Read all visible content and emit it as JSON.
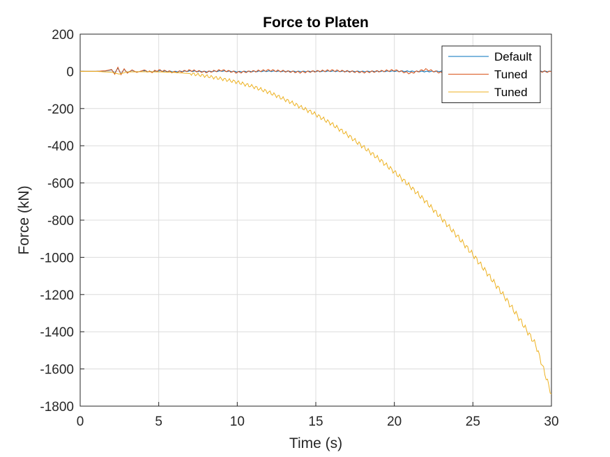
{
  "chart_data": {
    "type": "line",
    "title": "Force to Platen",
    "xlabel": "Time (s)",
    "ylabel": "Force (kN)",
    "xlim": [
      0,
      30
    ],
    "ylim": [
      -1800,
      200
    ],
    "xticks": [
      0,
      5,
      10,
      15,
      20,
      25,
      30
    ],
    "yticks": [
      200,
      0,
      -200,
      -400,
      -600,
      -800,
      -1000,
      -1200,
      -1400,
      -1600,
      -1800
    ],
    "grid": true,
    "legend_position": "top-right",
    "series": [
      {
        "name": "Default",
        "color": "#0072BD",
        "x": [
          0,
          1,
          1.6,
          2.0,
          2.2,
          2.4,
          2.6,
          2.8,
          3.0,
          3.3,
          3.6,
          4.0,
          4.5,
          5.0,
          6.0,
          7.0,
          8.0,
          9.0,
          10.0,
          12.0,
          14.0,
          16.0,
          18.0,
          20.0,
          22.0,
          24.0,
          26.0,
          28.0,
          30.0
        ],
        "y": [
          0,
          0,
          2,
          8,
          -10,
          18,
          -14,
          12,
          -8,
          6,
          -5,
          4,
          -3,
          3,
          -2,
          2,
          -2,
          2,
          -2,
          1,
          -1,
          1,
          -1,
          1,
          -1,
          1,
          -1,
          1,
          -1
        ]
      },
      {
        "name": "Tuned",
        "color": "#D95319",
        "x": [
          0,
          1,
          1.6,
          2.0,
          2.2,
          2.4,
          2.6,
          2.8,
          3.0,
          3.3,
          3.6,
          4.0,
          4.5,
          5.0,
          6.0,
          7.0,
          8.0,
          9.0,
          10.0,
          12.0,
          14.0,
          16.0,
          18.0,
          20.0,
          21.0,
          22.0,
          23.0,
          24.0,
          26.0,
          28.0,
          30.0
        ],
        "y": [
          0,
          0,
          3,
          10,
          -16,
          22,
          -18,
          14,
          -10,
          8,
          -6,
          5,
          -4,
          6,
          -5,
          5,
          -4,
          6,
          -6,
          6,
          -5,
          5,
          -5,
          6,
          -10,
          10,
          -8,
          6,
          -5,
          5,
          -3
        ]
      },
      {
        "name": "Tuned",
        "color": "#EDB120",
        "x": [
          0,
          1,
          2,
          2.5,
          3,
          4,
          5,
          6,
          7,
          8,
          9,
          10,
          11,
          12,
          13,
          14,
          15,
          16,
          17,
          18,
          19,
          20,
          21,
          22,
          23,
          24,
          25,
          26,
          27,
          28,
          29,
          30
        ],
        "y": [
          0,
          0,
          -5,
          -15,
          -3,
          -2,
          -3,
          -6,
          -12,
          -25,
          -40,
          -58,
          -82,
          -112,
          -150,
          -190,
          -232,
          -282,
          -340,
          -405,
          -470,
          -540,
          -618,
          -700,
          -790,
          -885,
          -985,
          -1095,
          -1210,
          -1335,
          -1470,
          -1735
        ]
      }
    ]
  }
}
